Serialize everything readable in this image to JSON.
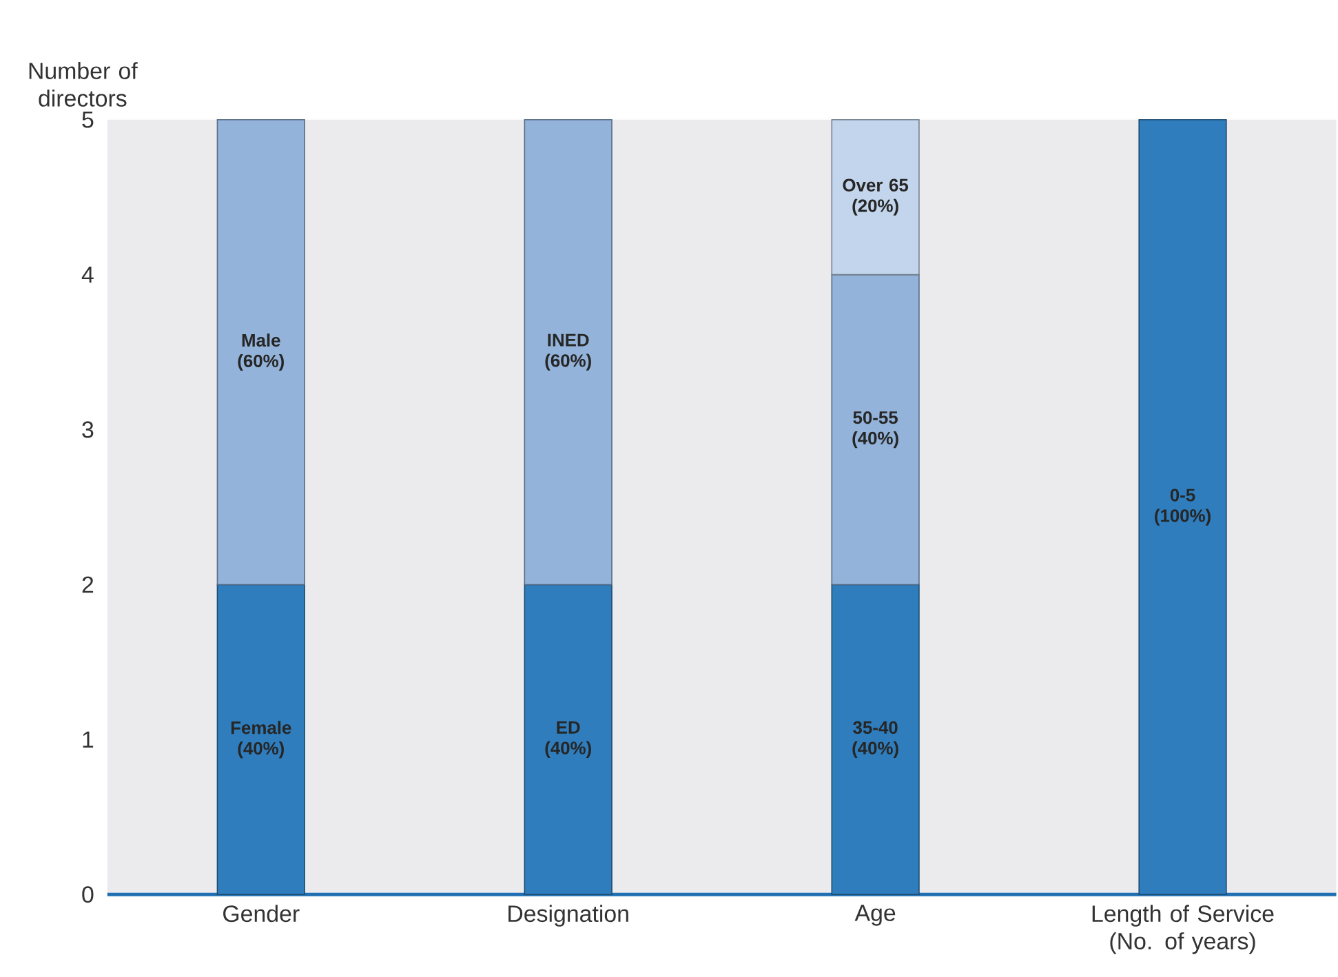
{
  "chart_data": {
    "type": "bar",
    "stacked": true,
    "ylabel": "Number of directors",
    "categories": [
      "Gender",
      "Designation",
      "Age",
      "Length of Service (No. of years)"
    ],
    "series": [
      {
        "color": "#2f7dbd",
        "values": [
          2,
          2,
          2,
          5
        ]
      },
      {
        "color": "#93b3da",
        "values": [
          3,
          3,
          2,
          null
        ]
      },
      {
        "color": "#c3d5ec",
        "values": [
          null,
          null,
          1,
          null
        ]
      }
    ],
    "annotations": [
      "Female (40%)",
      "Male (60%)",
      "ED (40%)",
      "INED (60%)",
      "35-40 (40%)",
      "50-55 (40%)",
      "Over 65 (20%)",
      "0-5 (100%)"
    ],
    "ylim": [
      0,
      5
    ],
    "yticks": [
      0,
      1,
      2,
      3,
      4,
      5
    ],
    "grid": false
  }
}
